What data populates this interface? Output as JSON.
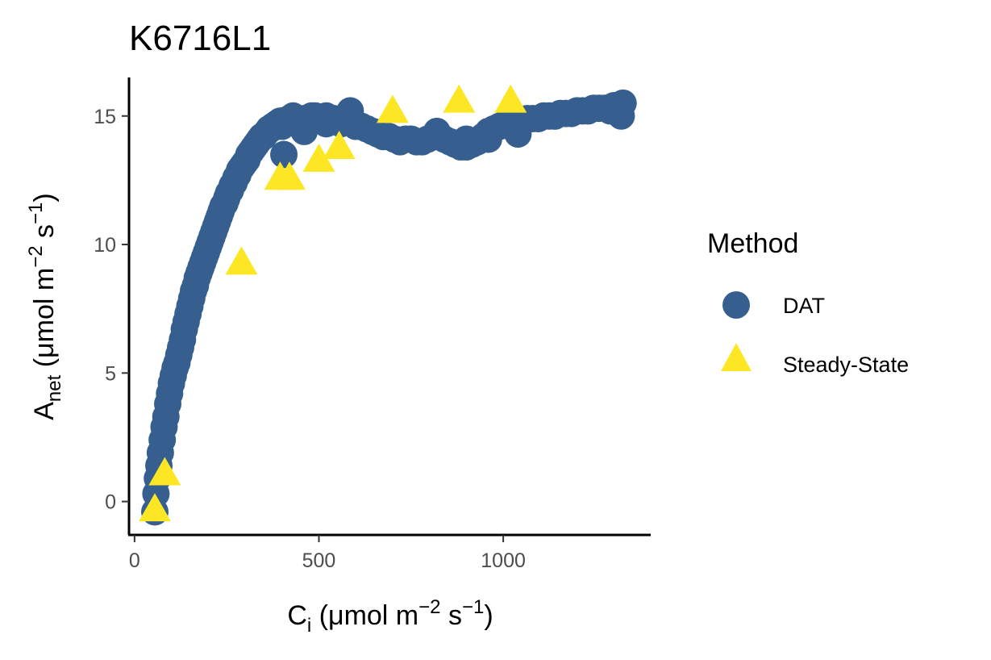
{
  "chart_data": {
    "type": "scatter",
    "title": "K6716L1",
    "xlabel": {
      "base": "C",
      "sub": "i",
      "unit_pre": " (μmol m",
      "exp1": "−2",
      "mid": " s",
      "exp2": "−1",
      "close": ")"
    },
    "ylabel": {
      "base": "A",
      "sub": "net",
      "unit_pre": " (μmol m",
      "exp1": "−2",
      "mid": " s",
      "exp2": "−1",
      "close": ")"
    },
    "xlim": [
      -15,
      1400
    ],
    "ylim": [
      -1.3,
      16.5
    ],
    "x_ticks": [
      0,
      500,
      1000
    ],
    "x_tick_labels": [
      "0",
      "500",
      "1000"
    ],
    "y_ticks": [
      0,
      5,
      10,
      15
    ],
    "y_tick_labels": [
      "0",
      "5",
      "10",
      "15"
    ],
    "grid": false,
    "legend": {
      "title": "Method",
      "position": "right"
    },
    "series": [
      {
        "name": "DAT",
        "color": "#365f8f",
        "marker": "circle",
        "x": [
          55,
          58,
          62,
          66,
          70,
          75,
          80,
          85,
          90,
          95,
          100,
          105,
          110,
          115,
          120,
          125,
          130,
          135,
          140,
          145,
          150,
          155,
          160,
          165,
          170,
          175,
          180,
          185,
          190,
          195,
          200,
          205,
          210,
          215,
          220,
          225,
          230,
          235,
          240,
          245,
          250,
          255,
          260,
          265,
          270,
          275,
          280,
          285,
          290,
          295,
          300,
          305,
          310,
          315,
          320,
          325,
          330,
          335,
          340,
          345,
          350,
          355,
          360,
          365,
          370,
          375,
          380,
          385,
          390,
          395,
          400,
          410,
          420,
          430,
          440,
          450,
          460,
          470,
          480,
          490,
          500,
          510,
          520,
          530,
          540,
          550,
          560,
          570,
          580,
          590,
          600,
          615,
          630,
          645,
          660,
          675,
          690,
          705,
          720,
          735,
          750,
          765,
          780,
          795,
          810,
          825,
          840,
          855,
          870,
          885,
          900,
          915,
          930,
          945,
          960,
          975,
          990,
          1005,
          1020,
          1035,
          1050,
          1065,
          1080,
          1095,
          1110,
          1125,
          1140,
          1155,
          1170,
          1185,
          1200,
          1215,
          1230,
          1245,
          1260,
          1275,
          1290,
          1305,
          1315,
          1320,
          1325
        ],
        "y": [
          -0.4,
          0.3,
          0.9,
          1.4,
          1.9,
          2.4,
          2.9,
          3.3,
          3.8,
          4.2,
          4.6,
          4.9,
          5.2,
          5.4,
          5.7,
          6.0,
          6.3,
          6.7,
          7.0,
          7.3,
          7.6,
          7.9,
          8.2,
          8.4,
          8.7,
          8.9,
          9.1,
          9.3,
          9.5,
          9.7,
          9.9,
          10.1,
          10.3,
          10.5,
          10.7,
          10.9,
          11.1,
          11.3,
          11.5,
          11.6,
          11.8,
          12.0,
          12.1,
          12.3,
          12.4,
          12.6,
          12.7,
          12.9,
          13.0,
          13.1,
          13.2,
          13.3,
          13.5,
          13.6,
          13.7,
          13.8,
          13.9,
          14.0,
          14.1,
          14.2,
          14.2,
          14.3,
          14.4,
          14.5,
          14.5,
          14.6,
          14.6,
          14.7,
          14.7,
          14.8,
          14.8,
          14.8,
          14.9,
          15.0,
          14.9,
          14.8,
          14.9,
          14.9,
          15.0,
          15.0,
          14.9,
          14.8,
          14.7,
          14.8,
          14.9,
          14.8,
          14.7,
          14.8,
          14.9,
          14.8,
          14.7,
          14.6,
          14.5,
          14.4,
          14.3,
          14.2,
          14.2,
          14.1,
          14.0,
          14.1,
          14.1,
          14.0,
          14.0,
          14.1,
          14.2,
          14.2,
          14.1,
          14.0,
          13.9,
          13.8,
          13.8,
          13.9,
          14.0,
          14.2,
          14.4,
          14.5,
          14.6,
          14.7,
          14.7,
          14.8,
          14.8,
          14.9,
          14.9,
          14.9,
          15.0,
          15.0,
          15.0,
          15.1,
          15.1,
          15.1,
          15.2,
          15.2,
          15.2,
          15.3,
          15.3,
          15.3,
          15.2,
          15.2,
          15.3,
          15.4,
          15.5
        ],
        "extra_points": [
          [
            400,
            14.6
          ],
          [
            405,
            13.5
          ],
          [
            460,
            14.4
          ],
          [
            520,
            15.0
          ],
          [
            585,
            15.2
          ],
          [
            600,
            14.6
          ],
          [
            820,
            14.4
          ],
          [
            900,
            14.1
          ],
          [
            960,
            14.1
          ],
          [
            1040,
            14.3
          ],
          [
            1140,
            15.0
          ],
          [
            1300,
            15.4
          ],
          [
            1320,
            15.0
          ]
        ]
      },
      {
        "name": "Steady-State",
        "color": "#fde725",
        "marker": "triangle",
        "x": [
          55,
          82,
          290,
          395,
          420,
          500,
          555,
          700,
          880,
          1020
        ],
        "y": [
          -0.3,
          1.1,
          9.3,
          12.6,
          12.6,
          13.3,
          13.8,
          15.2,
          15.6,
          15.6
        ]
      }
    ]
  }
}
